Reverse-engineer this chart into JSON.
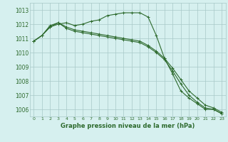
{
  "x": [
    0,
    1,
    2,
    3,
    4,
    5,
    6,
    7,
    8,
    9,
    10,
    11,
    12,
    13,
    14,
    15,
    16,
    17,
    18,
    19,
    20,
    21,
    22,
    23
  ],
  "line1": [
    1010.8,
    1011.2,
    1011.8,
    1012.0,
    1012.1,
    1011.9,
    1012.0,
    1012.2,
    1012.3,
    1012.6,
    1012.7,
    1012.8,
    1012.8,
    1012.8,
    1012.5,
    1011.2,
    1009.6,
    1008.5,
    1007.3,
    1006.8,
    1006.4,
    1006.0,
    1006.0,
    1005.7
  ],
  "line2": [
    1010.8,
    1011.2,
    1011.8,
    1012.1,
    1011.7,
    1011.5,
    1011.4,
    1011.3,
    1011.2,
    1011.1,
    1011.0,
    1010.9,
    1010.8,
    1010.7,
    1010.4,
    1010.0,
    1009.5,
    1008.7,
    1007.8,
    1007.0,
    1006.5,
    1006.1,
    1006.0,
    1005.7
  ],
  "line3": [
    1010.8,
    1011.2,
    1011.9,
    1012.1,
    1011.8,
    1011.6,
    1011.5,
    1011.4,
    1011.3,
    1011.2,
    1011.1,
    1011.0,
    1010.9,
    1010.8,
    1010.5,
    1010.1,
    1009.6,
    1008.9,
    1008.1,
    1007.3,
    1006.8,
    1006.3,
    1006.1,
    1005.8
  ],
  "line_color": "#2d6a2d",
  "bg_color": "#d6f0ef",
  "grid_color": "#a8c8c8",
  "xlabel": "Graphe pression niveau de la mer (hPa)",
  "ylim": [
    1005.5,
    1013.5
  ],
  "xlim": [
    -0.5,
    23.5
  ],
  "yticks": [
    1006,
    1007,
    1008,
    1009,
    1010,
    1011,
    1012,
    1013
  ],
  "xticks": [
    0,
    1,
    2,
    3,
    4,
    5,
    6,
    7,
    8,
    9,
    10,
    11,
    12,
    13,
    14,
    15,
    16,
    17,
    18,
    19,
    20,
    21,
    22,
    23
  ]
}
